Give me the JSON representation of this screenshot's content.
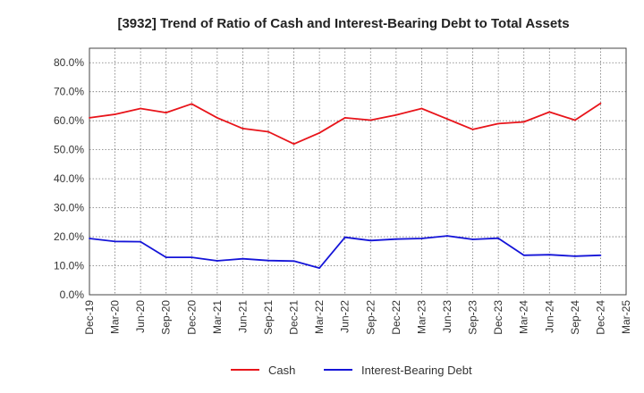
{
  "chart_data": {
    "type": "line",
    "title": "[3932]  Trend of Ratio of Cash and Interest-Bearing Debt to Total Assets",
    "xlabel": "",
    "ylabel": "",
    "ylim": [
      0,
      85
    ],
    "y_ticks": [
      0,
      10,
      20,
      30,
      40,
      50,
      60,
      70,
      80
    ],
    "y_tick_labels": [
      "0.0%",
      "10.0%",
      "20.0%",
      "30.0%",
      "40.0%",
      "50.0%",
      "60.0%",
      "70.0%",
      "80.0%"
    ],
    "x_tick_labels": [
      "Dec-19",
      "Mar-20",
      "Jun-20",
      "Sep-20",
      "Dec-20",
      "Mar-21",
      "Jun-21",
      "Sep-21",
      "Dec-21",
      "Mar-22",
      "Jun-22",
      "Sep-22",
      "Dec-22",
      "Mar-23",
      "Jun-23",
      "Sep-23",
      "Dec-23",
      "Mar-24",
      "Jun-24",
      "Sep-24",
      "Dec-24",
      "Mar-25"
    ],
    "grid": true,
    "legend_position": "bottom",
    "series": [
      {
        "name": "Cash",
        "color": "#e8141a",
        "values": [
          61.0,
          62.2,
          64.2,
          62.8,
          65.8,
          61.0,
          57.3,
          56.2,
          52.0,
          55.8,
          61.0,
          60.2,
          62.0,
          64.2,
          60.6,
          57.0,
          59.0,
          59.6,
          63.0,
          60.2,
          66.0,
          null
        ]
      },
      {
        "name": "Interest-Bearing Debt",
        "color": "#1414d8",
        "values": [
          19.4,
          18.4,
          18.3,
          12.9,
          12.9,
          11.7,
          12.4,
          11.8,
          11.6,
          9.2,
          19.8,
          18.7,
          19.2,
          19.4,
          20.3,
          19.1,
          19.5,
          13.6,
          13.8,
          13.3,
          13.6,
          null
        ]
      }
    ]
  }
}
